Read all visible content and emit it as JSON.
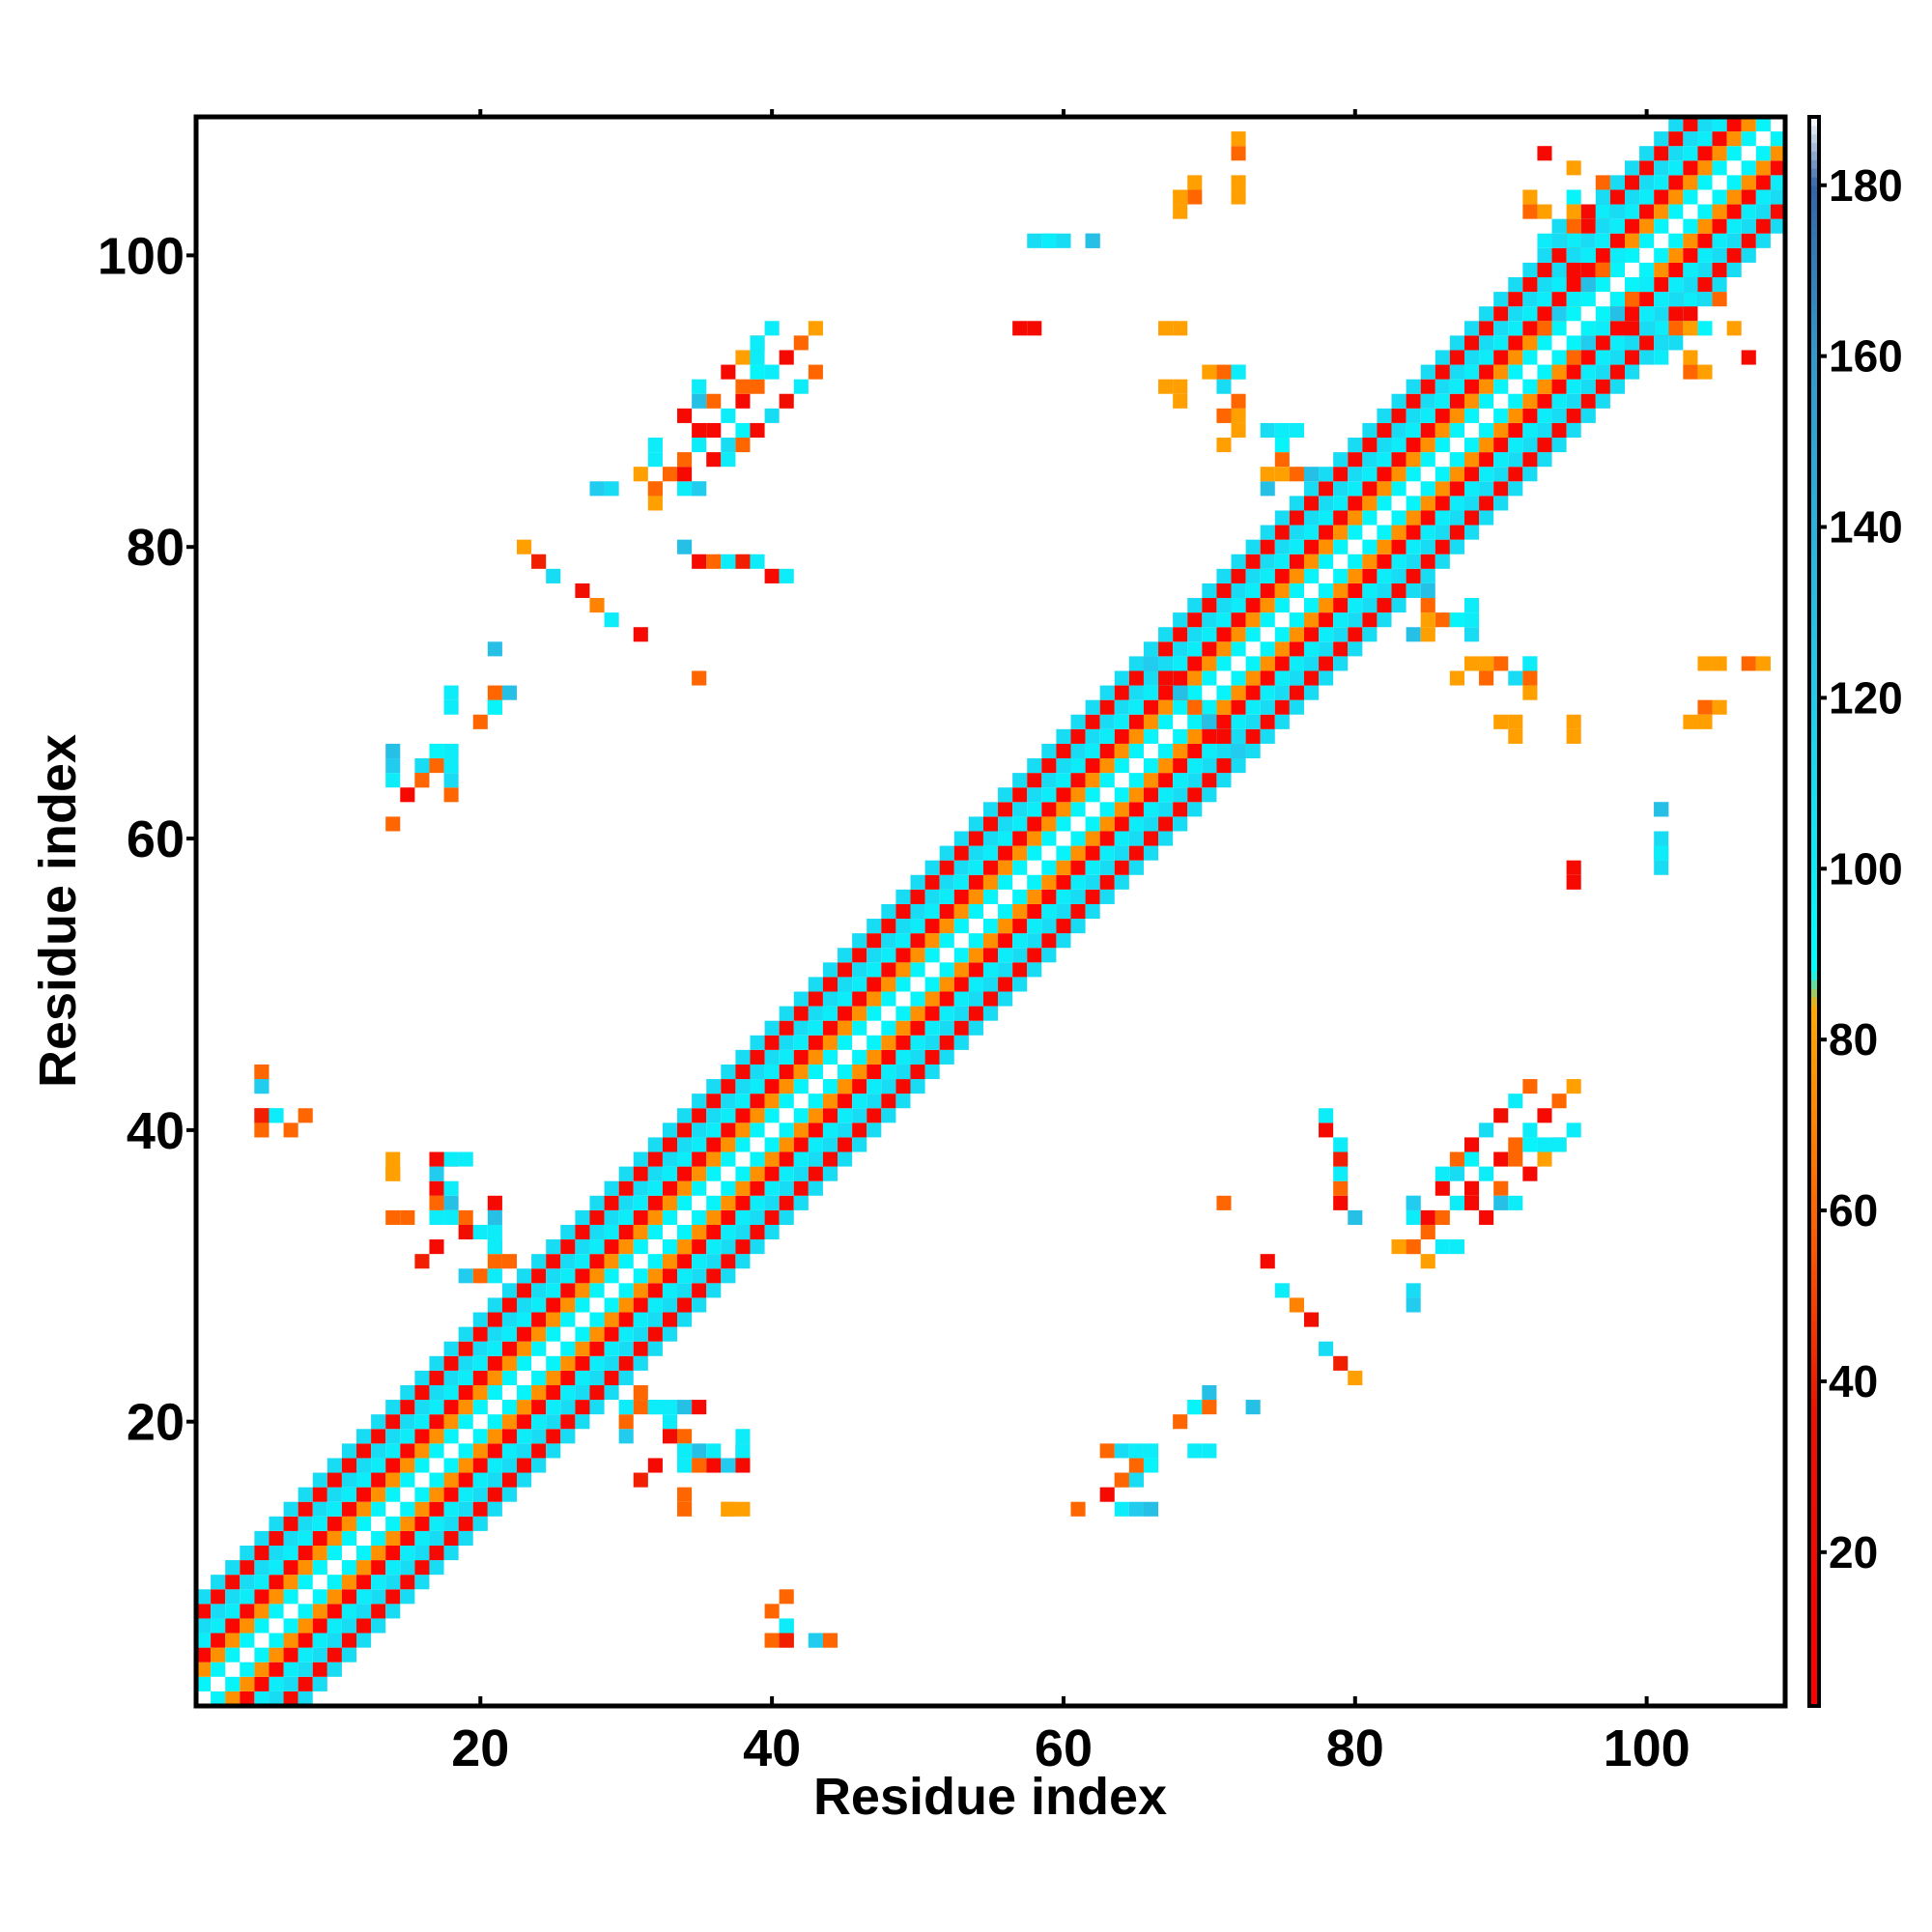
{
  "chart_data": {
    "type": "heatmap",
    "title": "",
    "xlabel": "Residue index",
    "ylabel": "Residue index",
    "xlim": [
      1,
      109
    ],
    "ylim": [
      1,
      109
    ],
    "x_ticks": [
      20,
      40,
      60,
      80,
      100
    ],
    "y_ticks": [
      20,
      40,
      60,
      80,
      100
    ],
    "colorbar": {
      "range": [
        2,
        188
      ],
      "ticks": [
        20,
        40,
        60,
        80,
        100,
        120,
        140,
        160,
        180
      ],
      "stops": [
        {
          "value": 2,
          "color": "#ff0000"
        },
        {
          "value": 36,
          "color": "#ee1100"
        },
        {
          "value": 60,
          "color": "#ff6600"
        },
        {
          "value": 84,
          "color": "#ffaa00"
        },
        {
          "value": 88,
          "color": "#00ffff"
        },
        {
          "value": 120,
          "color": "#22ccee"
        },
        {
          "value": 160,
          "color": "#3399cc"
        },
        {
          "value": 180,
          "color": "#3366aa"
        },
        {
          "value": 188,
          "color": "#ffffff"
        }
      ]
    },
    "grid": false,
    "legend": "colorbar-right",
    "diagonal_band": {
      "half_width": 7,
      "note_values_by_offset": [
        0,
        95,
        75,
        15,
        100,
        50,
        20,
        110
      ]
    },
    "points": [
      [
        34,
        80,
        130
      ],
      [
        35,
        79,
        20
      ],
      [
        36,
        79,
        60
      ],
      [
        37,
        79,
        100
      ],
      [
        38,
        79,
        40
      ],
      [
        39,
        79,
        100
      ],
      [
        40,
        78,
        20
      ],
      [
        41,
        78,
        100
      ],
      [
        66,
        72,
        120
      ],
      [
        67,
        71,
        95
      ],
      [
        68,
        70,
        30
      ],
      [
        69,
        69,
        60
      ],
      [
        70,
        68,
        130
      ],
      [
        71,
        67,
        20
      ],
      [
        23,
        80,
        80
      ],
      [
        24,
        79,
        40
      ],
      [
        25,
        78,
        110
      ],
      [
        27,
        77,
        30
      ],
      [
        28,
        76,
        70
      ],
      [
        29,
        75,
        100
      ],
      [
        31,
        74,
        20
      ],
      [
        16,
        64,
        60
      ],
      [
        16,
        65,
        110
      ],
      [
        17,
        65,
        60
      ],
      [
        18,
        66,
        100
      ],
      [
        20,
        68,
        60
      ],
      [
        21,
        69,
        95
      ],
      [
        22,
        70,
        130
      ],
      [
        36,
        86,
        20
      ],
      [
        37,
        86,
        100
      ],
      [
        38,
        87,
        60
      ],
      [
        39,
        88,
        20
      ],
      [
        40,
        89,
        110
      ],
      [
        41,
        90,
        30
      ],
      [
        42,
        91,
        100
      ],
      [
        43,
        92,
        60
      ],
      [
        35,
        88,
        20
      ],
      [
        35,
        91,
        100
      ],
      [
        36,
        90,
        60
      ],
      [
        37,
        92,
        20
      ],
      [
        38,
        93,
        80
      ],
      [
        39,
        94,
        40
      ],
      [
        40,
        95,
        100
      ],
      [
        32,
        84,
        80
      ],
      [
        33,
        85,
        60
      ],
      [
        34,
        84,
        100
      ],
      [
        35,
        84,
        100
      ],
      [
        29,
        84,
        110
      ],
      [
        14,
        37,
        80
      ],
      [
        15,
        34,
        60
      ],
      [
        17,
        34,
        100
      ],
      [
        18,
        35,
        130
      ],
      [
        19,
        34,
        60
      ],
      [
        20,
        33,
        100
      ],
      [
        21,
        32,
        110
      ],
      [
        22,
        31,
        60
      ],
      [
        16,
        31,
        40
      ],
      [
        19,
        30,
        120
      ],
      [
        20,
        30,
        60
      ],
      [
        21,
        30,
        100
      ],
      [
        18,
        38,
        20
      ],
      [
        19,
        38,
        100
      ],
      [
        5,
        43,
        100
      ],
      [
        5,
        41,
        20
      ],
      [
        6,
        41,
        100
      ],
      [
        8,
        41,
        60
      ],
      [
        5,
        44,
        60
      ],
      [
        5,
        40,
        80
      ],
      [
        33,
        19,
        30
      ],
      [
        34,
        18,
        100
      ],
      [
        35,
        17,
        60
      ],
      [
        36,
        17,
        20
      ],
      [
        37,
        17,
        120
      ],
      [
        36,
        18,
        100
      ],
      [
        34,
        14,
        60
      ],
      [
        37,
        14,
        80
      ],
      [
        38,
        14,
        80
      ],
      [
        31,
        21,
        60
      ],
      [
        32,
        21,
        100
      ],
      [
        33,
        21,
        100
      ],
      [
        34,
        21,
        130
      ],
      [
        35,
        21,
        20
      ],
      [
        38,
        18,
        100
      ],
      [
        38,
        17,
        20
      ],
      [
        32,
        17,
        20
      ],
      [
        40,
        7,
        60
      ],
      [
        40,
        5,
        60
      ],
      [
        41,
        5,
        40
      ],
      [
        41,
        6,
        100
      ],
      [
        43,
        5,
        120
      ],
      [
        44,
        5,
        60
      ],
      [
        63,
        18,
        60
      ],
      [
        64,
        18,
        110
      ],
      [
        65,
        18,
        100
      ],
      [
        66,
        17,
        95
      ],
      [
        64,
        16,
        60
      ],
      [
        63,
        15,
        20
      ],
      [
        64,
        14,
        100
      ],
      [
        65,
        14,
        120
      ],
      [
        66,
        14,
        130
      ],
      [
        61,
        14,
        60
      ],
      [
        69,
        18,
        100
      ],
      [
        70,
        18,
        100
      ],
      [
        69,
        21,
        95
      ],
      [
        70,
        21,
        60
      ],
      [
        73,
        21,
        130
      ],
      [
        71,
        35,
        60
      ],
      [
        84,
        35,
        120
      ],
      [
        85,
        34,
        20
      ],
      [
        86,
        34,
        60
      ],
      [
        87,
        35,
        100
      ],
      [
        88,
        36,
        20
      ],
      [
        89,
        37,
        100
      ],
      [
        90,
        38,
        20
      ],
      [
        91,
        39,
        60
      ],
      [
        92,
        40,
        100
      ],
      [
        93,
        41,
        20
      ],
      [
        94,
        42,
        60
      ],
      [
        95,
        43,
        80
      ],
      [
        84,
        32,
        60
      ],
      [
        85,
        31,
        80
      ],
      [
        86,
        32,
        100
      ],
      [
        87,
        32,
        100
      ],
      [
        83,
        32,
        80
      ],
      [
        84,
        28,
        120
      ],
      [
        87,
        37,
        110
      ],
      [
        88,
        38,
        95
      ],
      [
        89,
        34,
        20
      ],
      [
        90,
        35,
        130
      ],
      [
        91,
        38,
        60
      ],
      [
        92,
        39,
        95
      ],
      [
        93,
        39,
        100
      ],
      [
        94,
        39,
        100
      ],
      [
        84,
        74,
        130
      ],
      [
        85,
        74,
        80
      ],
      [
        86,
        75,
        60
      ],
      [
        87,
        75,
        95
      ],
      [
        88,
        75,
        100
      ],
      [
        89,
        72,
        80
      ],
      [
        90,
        72,
        60
      ],
      [
        89,
        71,
        60
      ],
      [
        91,
        71,
        110
      ],
      [
        92,
        72,
        95
      ],
      [
        90,
        68,
        80
      ],
      [
        91,
        68,
        80
      ],
      [
        95,
        68,
        80
      ],
      [
        103,
        68,
        80
      ],
      [
        104,
        69,
        60
      ],
      [
        104,
        72,
        80
      ],
      [
        107,
        72,
        60
      ],
      [
        95,
        58,
        20
      ],
      [
        101,
        62,
        130
      ],
      [
        101,
        59,
        110
      ],
      [
        101,
        60,
        110
      ],
      [
        58,
        101,
        110
      ],
      [
        59,
        101,
        100
      ],
      [
        62,
        101,
        130
      ],
      [
        57,
        95,
        20
      ],
      [
        67,
        95,
        80
      ],
      [
        68,
        104,
        80
      ],
      [
        69,
        105,
        80
      ],
      [
        72,
        105,
        80
      ],
      [
        72,
        108,
        80
      ],
      [
        67,
        91,
        80
      ],
      [
        70,
        92,
        80
      ],
      [
        71,
        92,
        60
      ],
      [
        72,
        92,
        100
      ],
      [
        71,
        87,
        80
      ],
      [
        72,
        88,
        80
      ],
      [
        74,
        88,
        110
      ],
      [
        76,
        88,
        100
      ],
      [
        75,
        85,
        80
      ],
      [
        76,
        85,
        60
      ],
      [
        77,
        85,
        130
      ],
      [
        93,
        95,
        60
      ],
      [
        94,
        96,
        120
      ],
      [
        95,
        97,
        100
      ],
      [
        96,
        98,
        130
      ],
      [
        97,
        99,
        60
      ],
      [
        98,
        100,
        100
      ],
      [
        99,
        95,
        20
      ],
      [
        100,
        96,
        100
      ],
      [
        102,
        95,
        60
      ],
      [
        93,
        103,
        80
      ],
      [
        94,
        102,
        110
      ],
      [
        95,
        104,
        95
      ],
      [
        96,
        103,
        20
      ],
      [
        97,
        105,
        60
      ],
      [
        101,
        95,
        100
      ],
      [
        103,
        95,
        80
      ],
      [
        106,
        95,
        80
      ],
      [
        101,
        93,
        100
      ],
      [
        103,
        92,
        60
      ],
      [
        104,
        92,
        80
      ],
      [
        107,
        93,
        20
      ],
      [
        103,
        97,
        100
      ]
    ]
  }
}
